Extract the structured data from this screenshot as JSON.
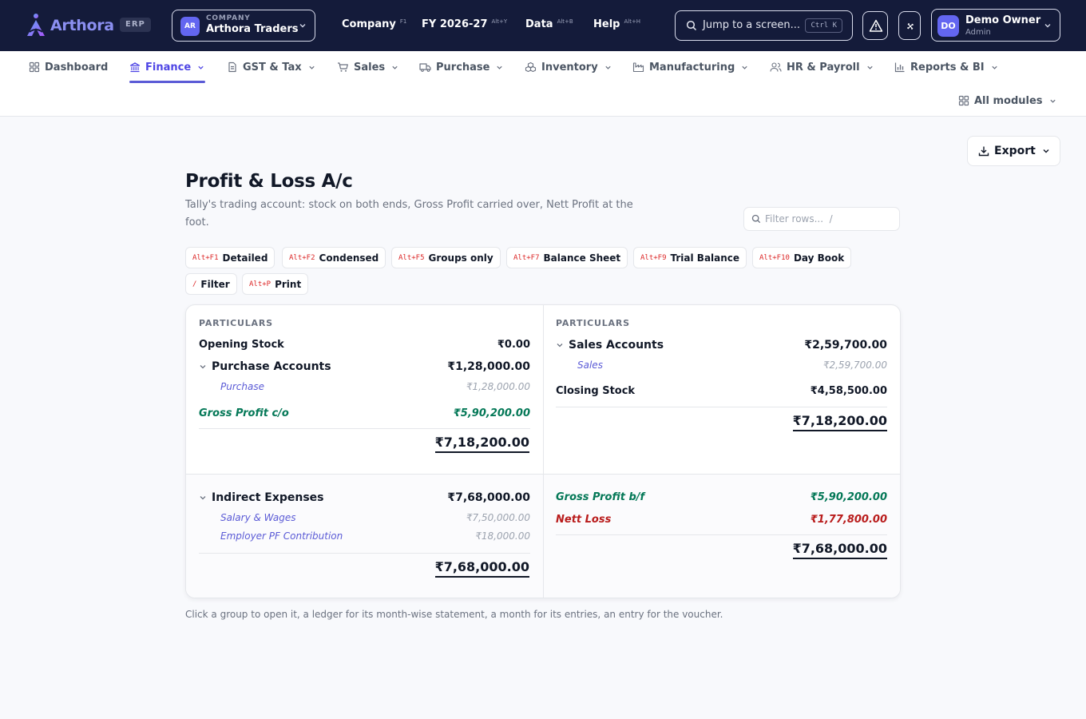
{
  "app": {
    "logo_text": "Arthora",
    "badge": "ERP",
    "company_caption": "COMPANY",
    "company_initials": "AR",
    "company_name": "Arthora Traders"
  },
  "topmenu": [
    {
      "label": "Company",
      "shortcut": "F1"
    },
    {
      "label": "FY 2026-27",
      "shortcut": "Alt+Y"
    },
    {
      "label": "Data",
      "shortcut": "Alt+B"
    },
    {
      "label": "Help",
      "shortcut": "Alt+H"
    }
  ],
  "search": {
    "placeholder": "Jump to a screen...",
    "shortcut": "Ctrl K"
  },
  "user": {
    "initials": "DO",
    "name": "Demo Owner",
    "role": "Admin"
  },
  "modules": [
    {
      "label": "Dashboard",
      "icon": "grid-icon"
    },
    {
      "label": "Finance",
      "icon": "bank-icon",
      "active": true
    },
    {
      "label": "GST & Tax",
      "icon": "document-icon"
    },
    {
      "label": "Sales",
      "icon": "cart-icon"
    },
    {
      "label": "Purchase",
      "icon": "truck-icon"
    },
    {
      "label": "Inventory",
      "icon": "boxes-icon"
    },
    {
      "label": "Manufacturing",
      "icon": "factory-icon"
    },
    {
      "label": "HR & Payroll",
      "icon": "users-icon"
    },
    {
      "label": "Reports & BI",
      "icon": "bar-chart-icon"
    },
    {
      "label": "All modules",
      "icon": "grid-icon"
    }
  ],
  "page": {
    "export_label": "Export",
    "title": "Profit & Loss A/c",
    "subtitle": "Tally's trading account: stock on both ends, Gross Profit carried over, Nett Profit at the foot.",
    "filter_placeholder": "Filter rows...  /",
    "footnote": "Click a group to open it, a ledger for its month-wise statement, a month for its entries, an entry for the voucher."
  },
  "shortcuts": [
    {
      "key": "Alt+F1",
      "label": "Detailed"
    },
    {
      "key": "Alt+F2",
      "label": "Condensed"
    },
    {
      "key": "Alt+F5",
      "label": "Groups only"
    },
    {
      "key": "Alt+F7",
      "label": "Balance Sheet"
    },
    {
      "key": "Alt+F9",
      "label": "Trial Balance"
    },
    {
      "key": "Alt+F10",
      "label": "Day Book"
    },
    {
      "key": "/",
      "label": "Filter"
    },
    {
      "key": "Alt+P",
      "label": "Print"
    }
  ],
  "pl": {
    "col_header": "PARTICULARS",
    "trading_debit": {
      "opening_stock": {
        "label": "Opening Stock",
        "amount": "₹0.00"
      },
      "purchase_accounts": {
        "label": "Purchase Accounts",
        "amount": "₹1,28,000.00"
      },
      "purchase": {
        "label": "Purchase",
        "amount": "₹1,28,000.00"
      },
      "gross_profit_co": {
        "label": "Gross Profit c/o",
        "amount": "₹5,90,200.00"
      },
      "total": "₹7,18,200.00"
    },
    "trading_credit": {
      "sales_accounts": {
        "label": "Sales Accounts",
        "amount": "₹2,59,700.00"
      },
      "sales": {
        "label": "Sales",
        "amount": "₹2,59,700.00"
      },
      "closing_stock": {
        "label": "Closing Stock",
        "amount": "₹4,58,500.00"
      },
      "total": "₹7,18,200.00"
    },
    "pl_debit": {
      "indirect_expenses": {
        "label": "Indirect Expenses",
        "amount": "₹7,68,000.00"
      },
      "salary_wages": {
        "label": "Salary & Wages",
        "amount": "₹7,50,000.00"
      },
      "employer_pf": {
        "label": "Employer PF Contribution",
        "amount": "₹18,000.00"
      },
      "total": "₹7,68,000.00"
    },
    "pl_credit": {
      "gross_profit_bf": {
        "label": "Gross Profit b/f",
        "amount": "₹5,90,200.00"
      },
      "nett_loss": {
        "label": "Nett Loss",
        "amount": "₹1,77,800.00"
      },
      "total": "₹7,68,000.00"
    }
  },
  "colors": {
    "topbar": "#141b3a",
    "accent": "#5b5bd6",
    "profit_green": "#047857",
    "loss_red": "#b91c1c",
    "shortcut_red": "#dc2626"
  }
}
